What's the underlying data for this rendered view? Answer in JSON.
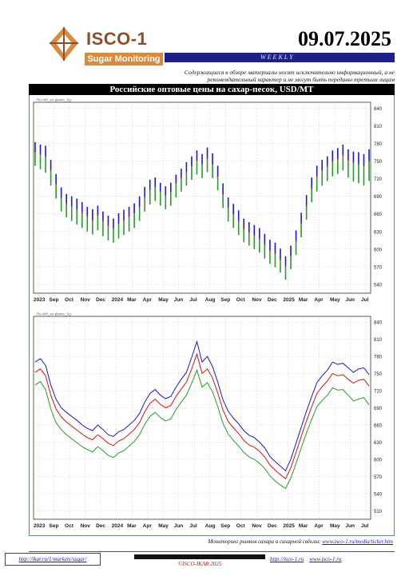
{
  "header": {
    "logo_name": "ISCO-1",
    "logo_sub": "Sugar Monitoring",
    "date": "09.07.2025",
    "frequency": "WEEKLY",
    "disclaimer": "Содержащиеся в обзоре материалы носят исключительно информационный, а не рекомендательный характер и не могут быть переданы третьим лицам"
  },
  "chart_title": "Российские оптовые цены на сахар-песок, USD/MT",
  "colors": {
    "series_high": "#1a1acc",
    "series_mid": "#d01818",
    "series_low": "#2a9a2a",
    "header_bar": "#1f1f8a",
    "logo_accent": "#d98a3a"
  },
  "chart_data": [
    {
      "type": "line",
      "panel": "top",
      "tag": "Ru-Wh_ex-plants_Sg",
      "y_ticks": [
        540,
        570,
        600,
        630,
        660,
        690,
        720,
        750,
        780,
        810,
        840
      ],
      "ylim": [
        525,
        850
      ],
      "x_ticks": [
        "2023",
        "Sep",
        "Oct",
        "Nov",
        "Dec",
        "2024",
        "Mar",
        "Apr",
        "May",
        "Jun",
        "Jul",
        "Aug",
        "Sep",
        "Oct",
        "Nov",
        "Dec",
        "2025",
        "Mar",
        "Apr",
        "May",
        "Jun",
        "Jul"
      ],
      "series": [
        {
          "values": [
            782,
            778,
            776,
            752,
            728,
            705,
            694,
            690,
            686,
            680,
            672,
            668,
            674,
            664,
            657,
            652,
            661,
            667,
            672,
            678,
            690,
            706,
            718,
            722,
            713,
            707,
            713,
            727,
            737,
            748,
            758,
            768,
            762,
            773,
            763,
            742,
            712,
            688,
            677,
            666,
            652,
            646,
            641,
            636,
            626,
            616,
            611,
            601,
            588,
            606,
            632,
            662,
            692,
            722,
            742,
            752,
            758,
            768,
            772,
            778,
            770,
            766,
            765,
            762,
            770
          ]
        },
        {
          "values": [
            766,
            762,
            758,
            735,
            711,
            688,
            678,
            673,
            668,
            662,
            656,
            650,
            658,
            648,
            640,
            636,
            644,
            650,
            656,
            662,
            672,
            689,
            701,
            706,
            698,
            692,
            698,
            712,
            722,
            732,
            742,
            751,
            745,
            755,
            745,
            724,
            694,
            671,
            660,
            648,
            635,
            629,
            624,
            618,
            608,
            598,
            593,
            583,
            572,
            589,
            614,
            644,
            674,
            704,
            724,
            734,
            741,
            750,
            754,
            760,
            752,
            748,
            745,
            742,
            750
          ]
        },
        {
          "values": [
            742,
            736,
            730,
            708,
            686,
            664,
            654,
            648,
            642,
            636,
            630,
            625,
            632,
            622,
            615,
            611,
            618,
            624,
            630,
            636,
            648,
            664,
            676,
            682,
            674,
            668,
            674,
            688,
            698,
            708,
            718,
            727,
            721,
            731,
            721,
            700,
            670,
            647,
            636,
            624,
            612,
            606,
            600,
            594,
            584,
            575,
            569,
            560,
            548,
            566,
            590,
            620,
            650,
            680,
            698,
            708,
            716,
            724,
            728,
            734,
            722,
            715,
            712,
            708,
            716
          ]
        }
      ]
    },
    {
      "type": "line",
      "panel": "bottom",
      "tag": "Ru-Wh_ex-plants_Sg",
      "y_ticks": [
        510,
        540,
        570,
        600,
        630,
        660,
        690,
        720,
        750,
        780,
        810,
        840
      ],
      "ylim": [
        495,
        850
      ],
      "x_ticks": [
        "2023",
        "Sep",
        "Oct",
        "Nov",
        "Dec",
        "2024",
        "Mar",
        "Apr",
        "May",
        "Jun",
        "Jul",
        "Aug",
        "Sep",
        "Oct",
        "Nov",
        "Dec",
        "2025",
        "Mar",
        "Apr",
        "May",
        "Jun",
        "Jul"
      ],
      "series": [
        {
          "values": [
            770,
            776,
            764,
            730,
            705,
            690,
            682,
            675,
            668,
            660,
            654,
            650,
            660,
            652,
            643,
            640,
            648,
            652,
            660,
            668,
            680,
            700,
            715,
            722,
            712,
            706,
            710,
            726,
            740,
            752,
            778,
            806,
            770,
            780,
            762,
            735,
            704,
            684,
            672,
            662,
            650,
            642,
            638,
            630,
            620,
            605,
            596,
            588,
            580,
            600,
            628,
            656,
            684,
            710,
            734,
            746,
            756,
            770,
            766,
            768,
            760,
            752,
            758,
            760,
            748
          ]
        },
        {
          "values": [
            752,
            758,
            746,
            712,
            688,
            674,
            665,
            658,
            651,
            644,
            638,
            634,
            643,
            636,
            628,
            624,
            632,
            636,
            644,
            652,
            664,
            683,
            698,
            705,
            696,
            690,
            694,
            710,
            723,
            735,
            758,
            784,
            750,
            758,
            742,
            716,
            686,
            666,
            655,
            645,
            633,
            625,
            621,
            614,
            604,
            590,
            581,
            573,
            566,
            585,
            612,
            640,
            667,
            692,
            715,
            727,
            737,
            750,
            746,
            748,
            740,
            733,
            738,
            740,
            728
          ]
        },
        {
          "values": [
            730,
            736,
            722,
            688,
            664,
            652,
            643,
            636,
            629,
            622,
            617,
            613,
            622,
            615,
            607,
            603,
            611,
            615,
            623,
            631,
            643,
            661,
            675,
            682,
            673,
            667,
            671,
            687,
            700,
            712,
            733,
            756,
            726,
            734,
            718,
            692,
            663,
            644,
            633,
            623,
            612,
            604,
            600,
            593,
            584,
            571,
            562,
            555,
            549,
            567,
            593,
            620,
            646,
            670,
            692,
            703,
            712,
            725,
            721,
            722,
            712,
            702,
            705,
            708,
            695
          ]
        }
      ]
    }
  ],
  "footer": {
    "note_text": "Мониторинг рынков сахара и сахарной свёклы:",
    "note_link": "www.isco-1.ru/media/ticker.htm",
    "link_left": "http://ikar.ru/1/markets/sugar/",
    "copyright": "©ISCO-IKAR 2025",
    "link_site1": "http://isco-1.ru",
    "link_site2": "www.isco-1.ru"
  }
}
